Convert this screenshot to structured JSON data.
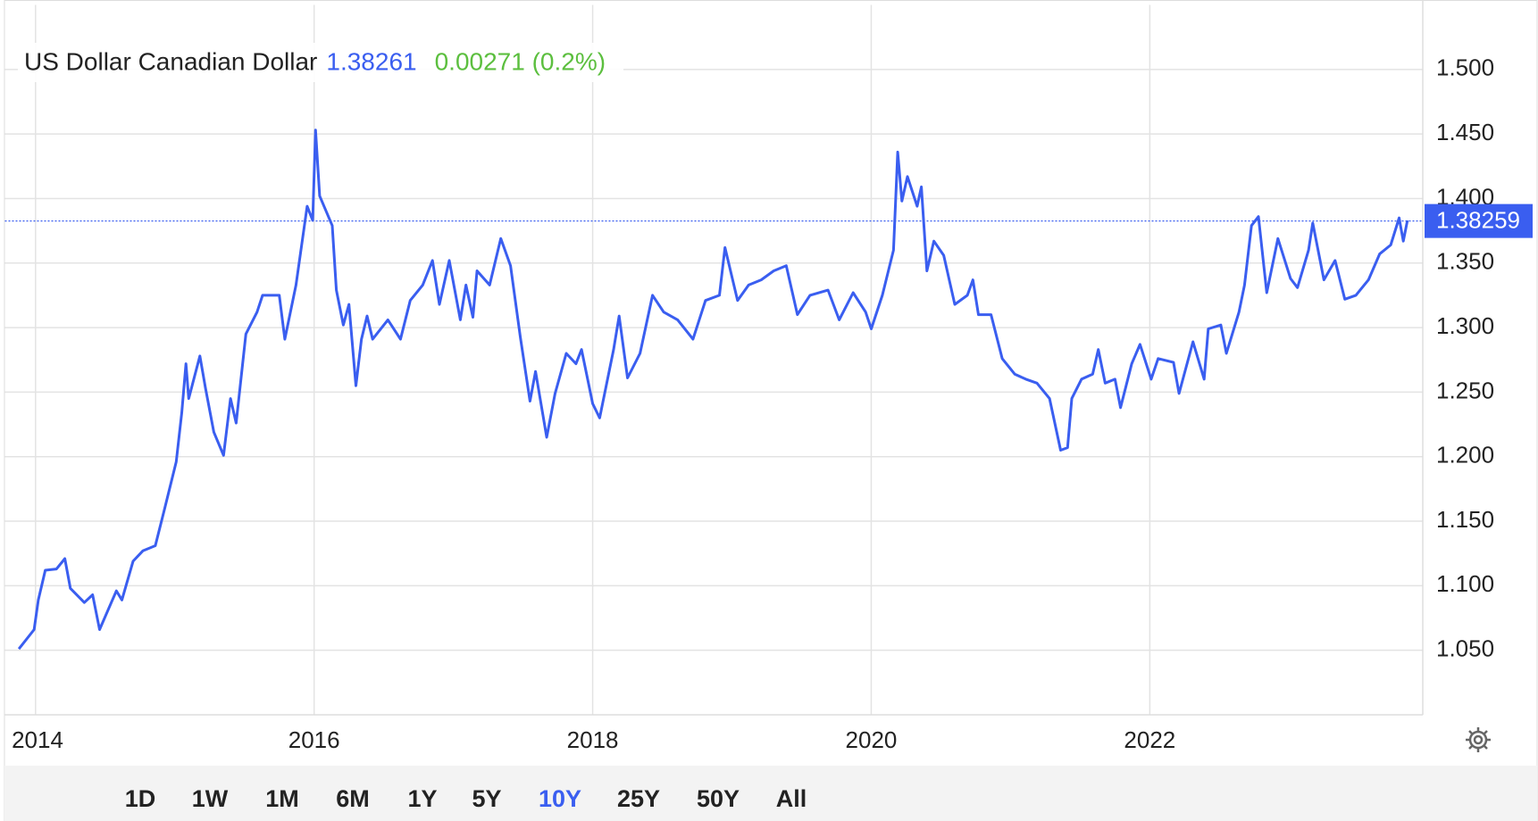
{
  "chart_data": {
    "type": "line",
    "title": "US Dollar Canadian Dollar",
    "annotations": [
      "1.38261",
      "0.00271 (0.2%)"
    ],
    "annotation_colors": [
      "#3a5ef0",
      "#5cbf3f"
    ],
    "last_value": 1.38259,
    "xlim": [
      2013.78,
      2023.96
    ],
    "xticks": [
      2014,
      2016,
      2018,
      2020,
      2022
    ],
    "ylim": [
      1.0,
      1.55
    ],
    "yticks": [
      {
        "value": 1.05,
        "label": "1.050"
      },
      {
        "value": 1.1,
        "label": "1.100"
      },
      {
        "value": 1.15,
        "label": "1.150"
      },
      {
        "value": 1.2,
        "label": "1.200"
      },
      {
        "value": 1.25,
        "label": "1.250"
      },
      {
        "value": 1.3,
        "label": "1.300"
      },
      {
        "value": 1.35,
        "label": "1.350"
      },
      {
        "value": 1.4,
        "label": "1.400"
      },
      {
        "value": 1.45,
        "label": "1.450"
      },
      {
        "value": 1.5,
        "label": "1.500"
      }
    ],
    "grid": true,
    "x": [
      2013.88,
      2013.99,
      2014.02,
      2014.07,
      2014.15,
      2014.21,
      2014.25,
      2014.35,
      2014.41,
      2014.46,
      2014.58,
      2014.62,
      2014.7,
      2014.77,
      2014.86,
      2014.93,
      2015.01,
      2015.05,
      2015.08,
      2015.1,
      2015.18,
      2015.22,
      2015.28,
      2015.35,
      2015.4,
      2015.44,
      2015.51,
      2015.59,
      2015.63,
      2015.75,
      2015.79,
      2015.87,
      2015.95,
      2015.99,
      2016.01,
      2016.04,
      2016.13,
      2016.16,
      2016.21,
      2016.25,
      2016.3,
      2016.34,
      2016.38,
      2016.42,
      2016.53,
      2016.62,
      2016.69,
      2016.78,
      2016.85,
      2016.9,
      2016.97,
      2017.05,
      2017.09,
      2017.14,
      2017.17,
      2017.26,
      2017.34,
      2017.41,
      2017.48,
      2017.55,
      2017.59,
      2017.67,
      2017.73,
      2017.81,
      2017.88,
      2017.92,
      2018.0,
      2018.05,
      2018.15,
      2018.19,
      2018.25,
      2018.34,
      2018.43,
      2018.51,
      2018.61,
      2018.72,
      2018.81,
      2018.91,
      2018.95,
      2019.04,
      2019.12,
      2019.21,
      2019.3,
      2019.39,
      2019.47,
      2019.56,
      2019.69,
      2019.77,
      2019.87,
      2019.96,
      2020.0,
      2020.08,
      2020.16,
      2020.19,
      2020.22,
      2020.26,
      2020.33,
      2020.36,
      2020.4,
      2020.45,
      2020.52,
      2020.6,
      2020.69,
      2020.73,
      2020.77,
      2020.86,
      2020.94,
      2021.03,
      2021.11,
      2021.19,
      2021.28,
      2021.36,
      2021.41,
      2021.44,
      2021.51,
      2021.59,
      2021.63,
      2021.68,
      2021.75,
      2021.79,
      2021.87,
      2021.93,
      2022.01,
      2022.06,
      2022.17,
      2022.21,
      2022.31,
      2022.39,
      2022.42,
      2022.51,
      2022.55,
      2022.64,
      2022.68,
      2022.73,
      2022.78,
      2022.84,
      2022.92,
      2023.01,
      2023.06,
      2023.14,
      2023.17,
      2023.25,
      2023.33,
      2023.4,
      2023.48,
      2023.57,
      2023.65,
      2023.73,
      2023.79,
      2023.82,
      2023.85
    ],
    "series": [
      {
        "color": "#3a5ef0",
        "values": [
          1.051,
          1.066,
          1.089,
          1.112,
          1.113,
          1.121,
          1.098,
          1.087,
          1.093,
          1.066,
          1.096,
          1.089,
          1.119,
          1.127,
          1.131,
          1.161,
          1.196,
          1.234,
          1.272,
          1.245,
          1.278,
          1.253,
          1.219,
          1.201,
          1.245,
          1.226,
          1.295,
          1.312,
          1.325,
          1.325,
          1.291,
          1.333,
          1.394,
          1.383,
          1.453,
          1.402,
          1.379,
          1.329,
          1.302,
          1.318,
          1.255,
          1.291,
          1.309,
          1.291,
          1.306,
          1.291,
          1.321,
          1.333,
          1.352,
          1.318,
          1.352,
          1.306,
          1.333,
          1.308,
          1.344,
          1.333,
          1.369,
          1.348,
          1.293,
          1.243,
          1.266,
          1.215,
          1.249,
          1.28,
          1.272,
          1.283,
          1.241,
          1.23,
          1.283,
          1.309,
          1.261,
          1.28,
          1.325,
          1.312,
          1.306,
          1.291,
          1.321,
          1.325,
          1.362,
          1.321,
          1.333,
          1.337,
          1.344,
          1.348,
          1.31,
          1.325,
          1.329,
          1.306,
          1.327,
          1.312,
          1.299,
          1.325,
          1.36,
          1.436,
          1.398,
          1.417,
          1.394,
          1.409,
          1.344,
          1.367,
          1.356,
          1.318,
          1.325,
          1.337,
          1.31,
          1.31,
          1.276,
          1.264,
          1.26,
          1.257,
          1.245,
          1.205,
          1.207,
          1.245,
          1.26,
          1.264,
          1.283,
          1.257,
          1.26,
          1.238,
          1.272,
          1.287,
          1.26,
          1.276,
          1.273,
          1.249,
          1.289,
          1.26,
          1.299,
          1.302,
          1.28,
          1.312,
          1.333,
          1.379,
          1.386,
          1.327,
          1.369,
          1.338,
          1.331,
          1.36,
          1.381,
          1.337,
          1.352,
          1.322,
          1.325,
          1.337,
          1.357,
          1.364,
          1.385,
          1.367,
          1.383
        ]
      }
    ]
  },
  "range_buttons": [
    "1D",
    "1W",
    "1M",
    "6M",
    "1Y",
    "5Y",
    "10Y",
    "25Y",
    "50Y",
    "All"
  ],
  "active_range": "10Y"
}
